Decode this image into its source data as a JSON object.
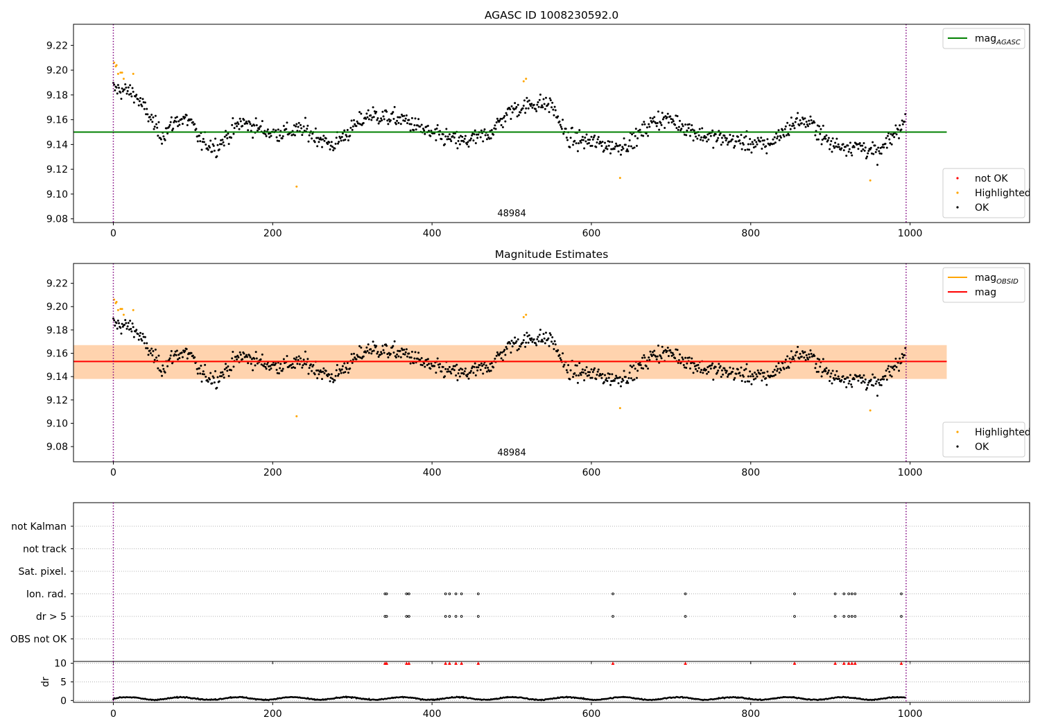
{
  "chart_data": [
    {
      "id": "panel1",
      "type": "scatter",
      "title": "AGASC ID 1008230592.0",
      "xlabel": "",
      "ylabel": "",
      "xlim": [
        -50,
        1150
      ],
      "ylim": [
        9.077,
        9.237
      ],
      "xticks": [
        0,
        200,
        400,
        600,
        800,
        1000
      ],
      "yticks": [
        9.08,
        9.1,
        9.12,
        9.14,
        9.16,
        9.18,
        9.2,
        9.22
      ],
      "ytick_labels": [
        "9.08",
        "9.10",
        "9.12",
        "9.14",
        "9.16",
        "9.18",
        "9.20",
        "9.22"
      ],
      "obsid_label": {
        "text": "48984",
        "x": 500
      },
      "vlines": [
        {
          "x": 0,
          "color": "#800080",
          "style": "dotted"
        },
        {
          "x": 995,
          "color": "#800080",
          "style": "dotted"
        }
      ],
      "hline": {
        "name": "mag_AGASC",
        "y": 9.15,
        "x_range": [
          -50,
          1046
        ],
        "color": "#008000"
      },
      "legends": [
        {
          "position": "upper right",
          "entries": [
            {
              "kind": "line",
              "color": "#008000",
              "label": "mag",
              "subscript": "AGASC"
            }
          ]
        },
        {
          "position": "lower right",
          "entries": [
            {
              "kind": "marker",
              "color": "#ff0000",
              "label": "not OK"
            },
            {
              "kind": "marker",
              "color": "#ffa500",
              "label": "Highlighted"
            },
            {
              "kind": "marker",
              "color": "#000000",
              "label": "OK"
            }
          ]
        }
      ],
      "series": [
        {
          "name": "not OK",
          "color": "#ff0000",
          "x": [],
          "y": []
        },
        {
          "name": "Highlighted",
          "color": "#ffa500",
          "x": [
            1,
            3,
            4,
            6,
            9,
            11,
            13,
            25,
            230,
            515,
            518,
            636,
            950
          ],
          "y": [
            9.206,
            9.203,
            9.204,
            9.197,
            9.198,
            9.198,
            9.193,
            9.197,
            9.106,
            9.191,
            9.193,
            9.113,
            9.111
          ]
        },
        {
          "name": "OK",
          "color": "#000000",
          "n": 995,
          "anchors": [
            [
              0,
              9.185
            ],
            [
              25,
              9.182
            ],
            [
              45,
              9.163
            ],
            [
              60,
              9.147
            ],
            [
              80,
              9.16
            ],
            [
              95,
              9.16
            ],
            [
              110,
              9.142
            ],
            [
              130,
              9.138
            ],
            [
              160,
              9.158
            ],
            [
              200,
              9.149
            ],
            [
              240,
              9.152
            ],
            [
              275,
              9.139
            ],
            [
              320,
              9.164
            ],
            [
              365,
              9.16
            ],
            [
              400,
              9.148
            ],
            [
              440,
              9.142
            ],
            [
              470,
              9.148
            ],
            [
              500,
              9.168
            ],
            [
              530,
              9.173
            ],
            [
              550,
              9.172
            ],
            [
              570,
              9.145
            ],
            [
              600,
              9.142
            ],
            [
              630,
              9.138
            ],
            [
              650,
              9.142
            ],
            [
              680,
              9.16
            ],
            [
              700,
              9.16
            ],
            [
              740,
              9.147
            ],
            [
              780,
              9.143
            ],
            [
              820,
              9.139
            ],
            [
              860,
              9.16
            ],
            [
              880,
              9.155
            ],
            [
              900,
              9.14
            ],
            [
              940,
              9.138
            ],
            [
              960,
              9.132
            ],
            [
              980,
              9.148
            ],
            [
              995,
              9.16
            ]
          ],
          "noise": 0.011
        }
      ]
    },
    {
      "id": "panel2",
      "type": "scatter",
      "title": "Magnitude Estimates",
      "xlabel": "",
      "ylabel": "",
      "xlim": [
        -50,
        1150
      ],
      "ylim": [
        9.067,
        9.237
      ],
      "xticks": [
        0,
        200,
        400,
        600,
        800,
        1000
      ],
      "yticks": [
        9.08,
        9.1,
        9.12,
        9.14,
        9.16,
        9.18,
        9.2,
        9.22
      ],
      "ytick_labels": [
        "9.08",
        "9.10",
        "9.12",
        "9.14",
        "9.16",
        "9.18",
        "9.20",
        "9.22"
      ],
      "obsid_label": {
        "text": "48984",
        "x": 500
      },
      "vlines": [
        {
          "x": 0,
          "color": "#800080",
          "style": "dotted"
        },
        {
          "x": 995,
          "color": "#800080",
          "style": "dotted"
        }
      ],
      "bands": [
        {
          "x_range": [
            -50,
            1046
          ],
          "y_range": [
            9.138,
            9.167
          ],
          "color": "#ffc0cb",
          "opacity": 0.45
        },
        {
          "x_range": [
            -50,
            1046
          ],
          "y_range": [
            9.138,
            9.167
          ],
          "color": "#ffa500",
          "opacity": 0.25
        }
      ],
      "hlines": [
        {
          "name": "mag_OBSID",
          "y": 9.153,
          "x_range": [
            0,
            995
          ],
          "color": "#ffa500"
        },
        {
          "name": "mag",
          "y": 9.153,
          "x_range": [
            -50,
            1046
          ],
          "color": "#ff0000"
        }
      ],
      "legends": [
        {
          "position": "upper right",
          "entries": [
            {
              "kind": "line",
              "color": "#ffa500",
              "label": "mag",
              "subscript": "OBSID"
            },
            {
              "kind": "line",
              "color": "#ff0000",
              "label": "mag"
            }
          ]
        },
        {
          "position": "lower right",
          "entries": [
            {
              "kind": "marker",
              "color": "#ffa500",
              "label": "Highlighted"
            },
            {
              "kind": "marker",
              "color": "#000000",
              "label": "OK"
            }
          ]
        }
      ],
      "series_ref": "panel1"
    },
    {
      "id": "panel3",
      "type": "scatter",
      "title": "",
      "xlim": [
        -50,
        1150
      ],
      "xticks": [
        0,
        200,
        400,
        600,
        800,
        1000
      ],
      "vlines": [
        {
          "x": 0,
          "color": "#800080",
          "style": "dotted"
        },
        {
          "x": 995,
          "color": "#800080",
          "style": "dotted"
        }
      ],
      "flag_rows": [
        "not Kalman",
        "not track",
        "Sat. pixel.",
        "Ion. rad.",
        "dr > 5",
        "OBS not OK"
      ],
      "flags": {
        "Ion. rad.": [
          341,
          343,
          368,
          371,
          417,
          422,
          430,
          437,
          458,
          627,
          718,
          855,
          906,
          917,
          923,
          927,
          931,
          989
        ],
        "dr > 5": [
          341,
          343,
          368,
          371,
          417,
          422,
          430,
          437,
          458,
          627,
          718,
          855,
          906,
          917,
          923,
          927,
          931,
          989
        ]
      },
      "dr_subplot": {
        "ylabel": "dr",
        "ylim": [
          -0.5,
          10.5
        ],
        "yticks": [
          0,
          5,
          10
        ],
        "ytick_labels": [
          "0",
          "5",
          "10"
        ],
        "clipped_markers": {
          "color": "#ff0000",
          "y": 10,
          "x": [
            341,
            343,
            368,
            371,
            417,
            422,
            430,
            437,
            458,
            627,
            718,
            855,
            906,
            917,
            923,
            927,
            931,
            989
          ]
        },
        "series": {
          "color": "#000000",
          "typical_range": [
            0.2,
            1.2
          ]
        }
      }
    }
  ]
}
